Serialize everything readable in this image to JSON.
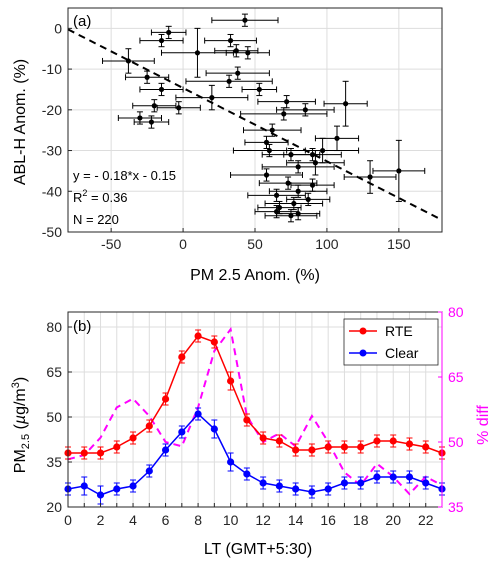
{
  "chart_data": [
    {
      "type": "scatter",
      "panel_label": "(a)",
      "xlabel": "PM 2.5 Anom. (%)",
      "ylabel": "ABL-H Anom. (%)",
      "xlim": [
        -80,
        180
      ],
      "ylim": [
        -50,
        5
      ],
      "xticks": [
        -50,
        0,
        50,
        100,
        150
      ],
      "yticks": [
        0,
        -10,
        -20,
        -30,
        -40,
        -50
      ],
      "grid": true,
      "annotations": [
        "y = - 0.18*x - 0.15",
        "R^2 = 0.36",
        "N = 220"
      ],
      "fit": {
        "slope": -0.18,
        "intercept": -0.15,
        "style": "dashed",
        "color": "#000000"
      },
      "points": [
        {
          "x": 43,
          "y": 2,
          "xerr": 23,
          "yerr": 1.5
        },
        {
          "x": -10,
          "y": -1,
          "xerr": 12,
          "yerr": 1.5
        },
        {
          "x": -15,
          "y": -3,
          "xerr": 15,
          "yerr": 1.5
        },
        {
          "x": 33,
          "y": -3,
          "xerr": 18,
          "yerr": 1.5
        },
        {
          "x": 37,
          "y": -5.5,
          "xerr": 15,
          "yerr": 1.5
        },
        {
          "x": 10,
          "y": -6,
          "xerr": 25,
          "yerr": 6
        },
        {
          "x": 45,
          "y": -6,
          "xerr": 15,
          "yerr": 1.5
        },
        {
          "x": -38,
          "y": -8,
          "xerr": 18,
          "yerr": 3
        },
        {
          "x": 38,
          "y": -11,
          "xerr": 22,
          "yerr": 1.5
        },
        {
          "x": -25,
          "y": -12,
          "xerr": 15,
          "yerr": 1.5
        },
        {
          "x": 32,
          "y": -13,
          "xerr": 30,
          "yerr": 1.5
        },
        {
          "x": -15,
          "y": -15,
          "xerr": 15,
          "yerr": 1.5
        },
        {
          "x": 53,
          "y": -15,
          "xerr": 12,
          "yerr": 1.5
        },
        {
          "x": 20,
          "y": -17,
          "xerr": 25,
          "yerr": 3
        },
        {
          "x": 72,
          "y": -18,
          "xerr": 20,
          "yerr": 1.5
        },
        {
          "x": 113,
          "y": -18.5,
          "xerr": 15,
          "yerr": 5.5
        },
        {
          "x": -20,
          "y": -19,
          "xerr": 15,
          "yerr": 1.5
        },
        {
          "x": -3,
          "y": -19.5,
          "xerr": 15,
          "yerr": 1.5
        },
        {
          "x": 85,
          "y": -20,
          "xerr": 20,
          "yerr": 1.5
        },
        {
          "x": 70,
          "y": -21,
          "xerr": 30,
          "yerr": 1.5
        },
        {
          "x": -30,
          "y": -22,
          "xerr": 15,
          "yerr": 1.5
        },
        {
          "x": -22,
          "y": -23,
          "xerr": 12,
          "yerr": 1.5
        },
        {
          "x": 62,
          "y": -25,
          "xerr": 20,
          "yerr": 1.5
        },
        {
          "x": 107,
          "y": -27,
          "xerr": 15,
          "yerr": 3
        },
        {
          "x": 58,
          "y": -28,
          "xerr": 15,
          "yerr": 1.5
        },
        {
          "x": 60,
          "y": -30,
          "xerr": 25,
          "yerr": 1.5
        },
        {
          "x": 97,
          "y": -30,
          "xerr": 25,
          "yerr": 3
        },
        {
          "x": 75,
          "y": -31,
          "xerr": 20,
          "yerr": 1.5
        },
        {
          "x": 90,
          "y": -31,
          "xerr": 20,
          "yerr": 1.5
        },
        {
          "x": 92,
          "y": -33,
          "xerr": 20,
          "yerr": 3
        },
        {
          "x": 80,
          "y": -34,
          "xerr": 25,
          "yerr": 1.5
        },
        {
          "x": 150,
          "y": -35,
          "xerr": 18,
          "yerr": 7.5
        },
        {
          "x": 58,
          "y": -36,
          "xerr": 25,
          "yerr": 1.5
        },
        {
          "x": 130,
          "y": -36.5,
          "xerr": 18,
          "yerr": 4
        },
        {
          "x": 73,
          "y": -38,
          "xerr": 20,
          "yerr": 1.5
        },
        {
          "x": 90,
          "y": -38.5,
          "xerr": 15,
          "yerr": 1.5
        },
        {
          "x": 80,
          "y": -40,
          "xerr": 20,
          "yerr": 1.5
        },
        {
          "x": 65,
          "y": -41,
          "xerr": 20,
          "yerr": 1.5
        },
        {
          "x": 87,
          "y": -42,
          "xerr": 15,
          "yerr": 1.5
        },
        {
          "x": 77,
          "y": -43,
          "xerr": 20,
          "yerr": 1.5
        },
        {
          "x": 67,
          "y": -44,
          "xerr": 15,
          "yerr": 1.5
        },
        {
          "x": 65,
          "y": -45,
          "xerr": 15,
          "yerr": 1.5
        },
        {
          "x": 80,
          "y": -45.5,
          "xerr": 15,
          "yerr": 1.5
        },
        {
          "x": 75,
          "y": -46,
          "xerr": 18,
          "yerr": 1.5
        }
      ]
    },
    {
      "type": "line",
      "panel_label": "(b)",
      "xlabel": "LT (GMT+5:30)",
      "ylabel": "PM2.5 (µg/m3)",
      "y2label": "% diff",
      "x": [
        0,
        1,
        2,
        3,
        4,
        5,
        6,
        7,
        8,
        9,
        10,
        11,
        12,
        13,
        14,
        15,
        16,
        17,
        18,
        19,
        20,
        21,
        22,
        23
      ],
      "xlim": [
        0,
        23
      ],
      "ylim": [
        20,
        85
      ],
      "y2lim": [
        35,
        80
      ],
      "xticks": [
        0,
        2,
        4,
        6,
        8,
        10,
        12,
        14,
        16,
        18,
        20,
        22
      ],
      "yticks": [
        20,
        35,
        50,
        65,
        80
      ],
      "y2ticks": [
        35,
        50,
        65,
        80
      ],
      "grid": true,
      "legend_position": "top-right",
      "series": [
        {
          "name": "RTE",
          "color": "#ff0000",
          "marker": "circle",
          "values": [
            38,
            38,
            38,
            40,
            43,
            47,
            56,
            70,
            77,
            75,
            62,
            49,
            43,
            42,
            39,
            39,
            40,
            40,
            40,
            42,
            42,
            41,
            40,
            38
          ],
          "errors": [
            2,
            2,
            2,
            2,
            2,
            2,
            2,
            2,
            2,
            2,
            3,
            2,
            2,
            2,
            2,
            2,
            2,
            2,
            2,
            2,
            2,
            2,
            2,
            2
          ]
        },
        {
          "name": "Clear",
          "color": "#0000ff",
          "marker": "circle",
          "values": [
            26,
            27,
            24,
            26,
            27,
            32,
            39,
            45,
            51,
            46,
            35,
            31,
            28,
            27,
            26,
            25,
            26,
            28,
            28,
            30,
            30,
            30,
            28,
            26
          ],
          "errors": [
            2,
            3,
            3,
            2,
            2,
            2,
            2,
            2,
            2,
            3,
            3,
            2,
            2,
            2,
            2,
            2,
            2,
            2,
            2,
            2,
            2,
            2,
            2,
            2
          ]
        },
        {
          "name": "% diff",
          "color": "#ff00ff",
          "style": "dashed",
          "axis": "right",
          "values": [
            46,
            47,
            51,
            58,
            60,
            56,
            50,
            49,
            58,
            71,
            76,
            56,
            50,
            52,
            49,
            56,
            50,
            43,
            40,
            45,
            42,
            38,
            42,
            40
          ]
        }
      ]
    }
  ]
}
